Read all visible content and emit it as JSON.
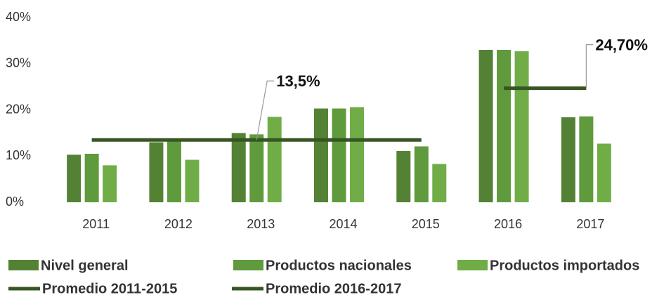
{
  "chart_data": {
    "type": "bar",
    "categories": [
      "2011",
      "2012",
      "2013",
      "2014",
      "2015",
      "2016",
      "2017"
    ],
    "series": [
      {
        "name": "Nivel general",
        "color": "#548235",
        "values": [
          10.3,
          13.0,
          15.0,
          20.3,
          11.1,
          33.0,
          18.4
        ]
      },
      {
        "name": "Productos nacionales",
        "color": "#5f9a3c",
        "values": [
          10.5,
          13.3,
          14.7,
          20.3,
          12.1,
          33.0,
          18.6
        ]
      },
      {
        "name": "Productos importados",
        "color": "#70ad47",
        "values": [
          8.0,
          9.2,
          18.5,
          20.6,
          8.3,
          32.7,
          12.7
        ]
      }
    ],
    "lines": [
      {
        "name": "Promedio 2011-2015",
        "color": "#375623",
        "values": [
          13.5,
          13.5,
          13.5,
          13.5,
          13.5,
          null,
          null
        ],
        "label": "13,5%"
      },
      {
        "name": "Promedio 2016-2017",
        "color": "#375623",
        "values": [
          null,
          null,
          null,
          null,
          null,
          24.7,
          24.7
        ],
        "label": "24,70%"
      }
    ],
    "ylim": [
      0,
      40
    ],
    "yticks": [
      {
        "value": 0,
        "label": "0%"
      },
      {
        "value": 10,
        "label": "10%"
      },
      {
        "value": 20,
        "label": "20%"
      },
      {
        "value": 30,
        "label": "30%"
      },
      {
        "value": 40,
        "label": "40%"
      }
    ],
    "grid": false
  }
}
